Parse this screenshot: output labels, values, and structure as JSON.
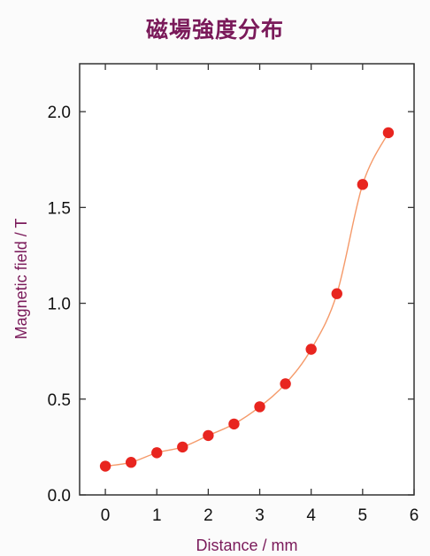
{
  "chart_data": {
    "type": "line",
    "title": "磁場強度分布",
    "xlabel": "Distance / mm",
    "ylabel": "Magnetic field / T",
    "xlim": [
      -0.5,
      6
    ],
    "ylim": [
      0,
      2.25
    ],
    "xticks": [
      "0",
      "1",
      "2",
      "3",
      "4",
      "5",
      "6"
    ],
    "yticks": [
      "0.0",
      "0.5",
      "1.0",
      "1.5",
      "2.0"
    ],
    "grid": false,
    "colors": {
      "line": "#f59a6a",
      "marker": "#e8251f",
      "title": "#7a1a5a"
    },
    "series": [
      {
        "x": [
          0,
          0.5,
          1,
          1.5,
          2,
          2.5,
          3,
          3.5,
          4,
          4.5,
          5,
          5.5
        ],
        "values": [
          0.15,
          0.17,
          0.22,
          0.25,
          0.31,
          0.37,
          0.46,
          0.58,
          0.76,
          1.05,
          1.62,
          1.89
        ]
      }
    ]
  }
}
